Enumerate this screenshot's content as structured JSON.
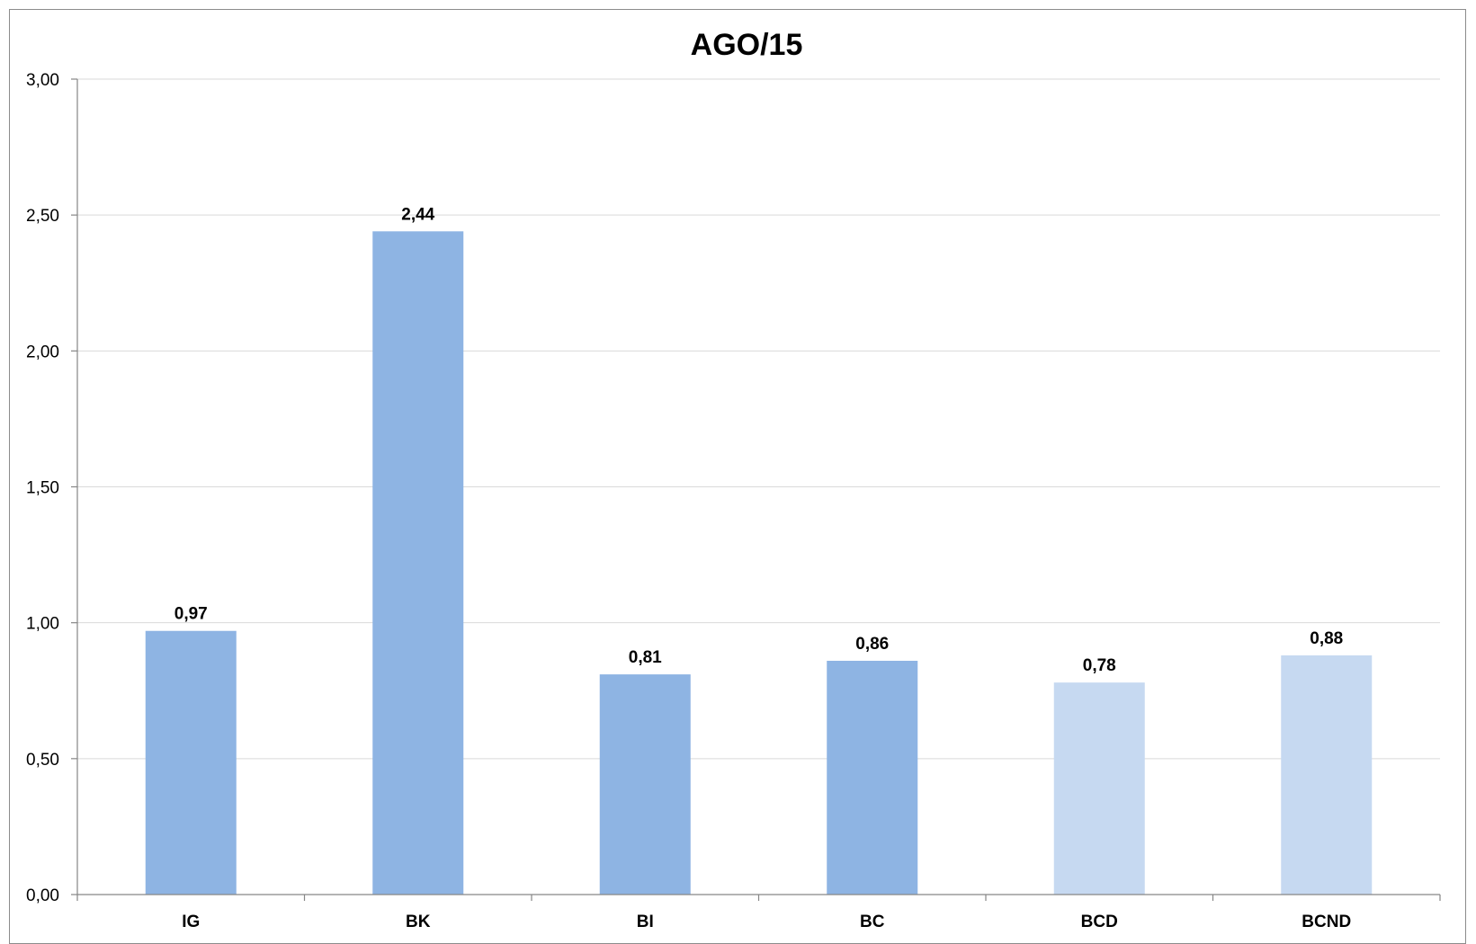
{
  "chart_data": {
    "type": "bar",
    "title": "AGO/15",
    "xlabel": "",
    "ylabel": "",
    "categories": [
      "IG",
      "BK",
      "BI",
      "BC",
      "BCD",
      "BCND"
    ],
    "values": [
      0.97,
      2.44,
      0.81,
      0.86,
      0.78,
      0.88
    ],
    "value_labels": [
      "0,97",
      "2,44",
      "0,81",
      "0,86",
      "0,78",
      "0,88"
    ],
    "ylim": [
      0,
      3
    ],
    "yticks": [
      0,
      0.5,
      1,
      1.5,
      2,
      2.5,
      3
    ],
    "ytick_labels": [
      "0,00",
      "0,50",
      "1,00",
      "1,50",
      "2,00",
      "2,50",
      "3,00"
    ],
    "bar_colors": [
      "#8eb4e3",
      "#8eb4e3",
      "#8eb4e3",
      "#8eb4e3",
      "#c6d9f1",
      "#c6d9f1"
    ],
    "grid": true,
    "legend": "none"
  }
}
